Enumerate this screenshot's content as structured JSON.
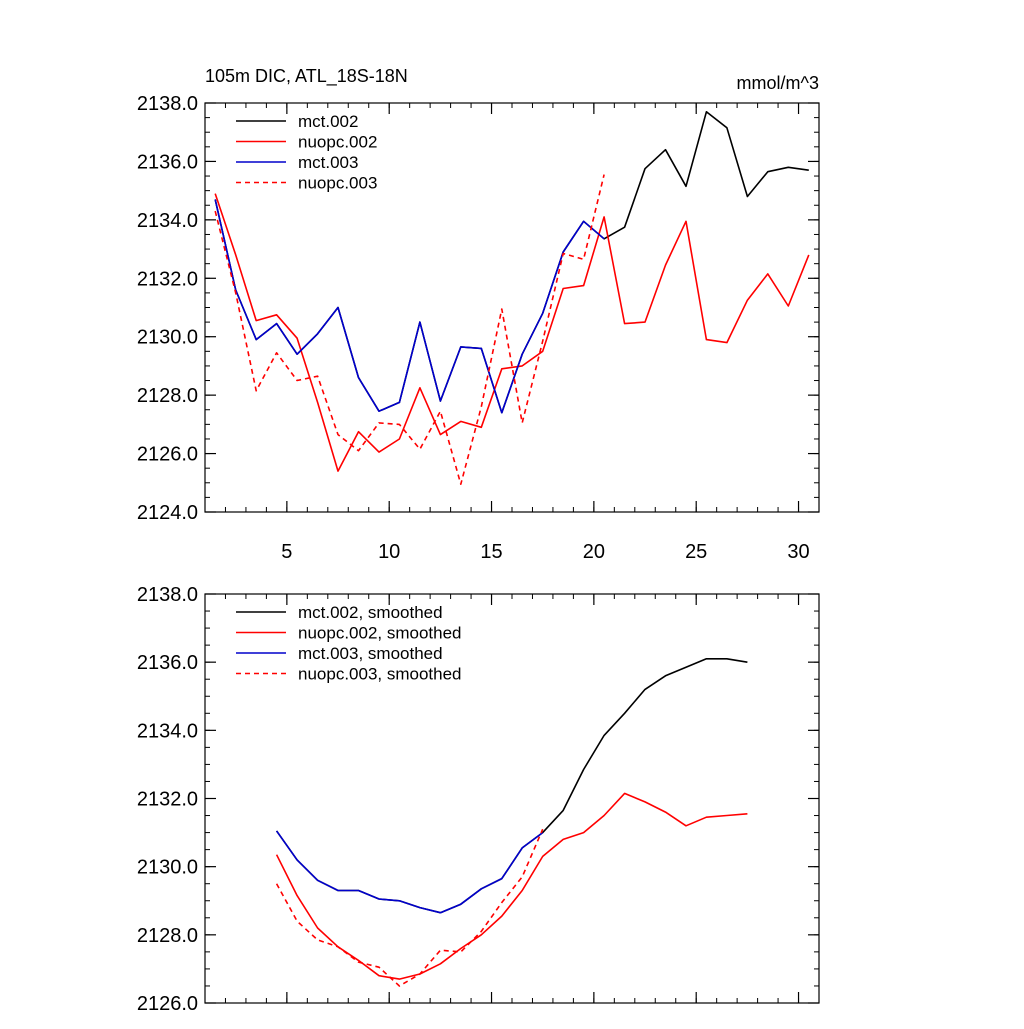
{
  "chart_data": [
    {
      "type": "line",
      "title": "105m DIC, ATL_18S-18N",
      "units": "mmol/m^3",
      "xlabel": "",
      "ylabel": "",
      "xlim": [
        1,
        31
      ],
      "ylim": [
        2124.0,
        2138.0
      ],
      "xticks": [
        5,
        10,
        15,
        20,
        25,
        30
      ],
      "yticks": [
        2124.0,
        2126.0,
        2128.0,
        2130.0,
        2132.0,
        2134.0,
        2136.0,
        2138.0
      ],
      "ytick_labels": [
        "2124.0",
        "2126.0",
        "2128.0",
        "2130.0",
        "2132.0",
        "2134.0",
        "2136.0",
        "2138.0"
      ],
      "legend_position": "top-left",
      "series": [
        {
          "name": "mct.002",
          "color": "#000000",
          "dash": "solid",
          "x": [
            1.5,
            2.5,
            3.5,
            4.5,
            5.5,
            6.5,
            7.5,
            8.5,
            9.5,
            10.5,
            11.5,
            12.5,
            13.5,
            14.5,
            15.5,
            16.5,
            17.5,
            18.5,
            19.5,
            20.5,
            21.5,
            22.5,
            23.5,
            24.5,
            25.5,
            26.5,
            27.5,
            28.5,
            29.5,
            30.5
          ],
          "values": [
            2134.7,
            2131.6,
            2129.9,
            2130.45,
            2129.4,
            2130.1,
            2131.0,
            2128.6,
            2127.45,
            2127.75,
            2130.5,
            2127.8,
            2129.65,
            2129.6,
            2127.4,
            2129.4,
            2130.8,
            2132.9,
            2133.95,
            2133.35,
            2133.75,
            2135.75,
            2136.4,
            2135.15,
            2137.7,
            2137.15,
            2134.8,
            2135.65,
            2135.8,
            2135.7
          ]
        },
        {
          "name": "nuopc.002",
          "color": "#ff0000",
          "dash": "solid",
          "x": [
            1.5,
            2.5,
            3.5,
            4.5,
            5.5,
            6.5,
            7.5,
            8.5,
            9.5,
            10.5,
            11.5,
            12.5,
            13.5,
            14.5,
            15.5,
            16.5,
            17.5,
            18.5,
            19.5,
            20.5,
            21.5,
            22.5,
            23.5,
            24.5,
            25.5,
            26.5,
            27.5,
            28.5,
            29.5,
            30.5
          ],
          "values": [
            2134.9,
            2132.8,
            2130.55,
            2130.75,
            2129.95,
            2127.75,
            2125.4,
            2126.75,
            2126.05,
            2126.5,
            2128.25,
            2126.65,
            2127.1,
            2126.9,
            2128.9,
            2129.0,
            2129.5,
            2131.65,
            2131.75,
            2134.1,
            2130.45,
            2130.5,
            2132.45,
            2133.95,
            2129.9,
            2129.8,
            2131.25,
            2132.15,
            2131.05,
            2132.8
          ]
        },
        {
          "name": "mct.003",
          "color": "#0000cc",
          "dash": "solid",
          "x": [
            1.5,
            2.5,
            3.5,
            4.5,
            5.5,
            6.5,
            7.5,
            8.5,
            9.5,
            10.5,
            11.5,
            12.5,
            13.5,
            14.5,
            15.5,
            16.5,
            17.5,
            18.5,
            19.5,
            20.5
          ],
          "values": [
            2134.7,
            2131.6,
            2129.9,
            2130.45,
            2129.4,
            2130.1,
            2131.0,
            2128.6,
            2127.45,
            2127.75,
            2130.5,
            2127.8,
            2129.65,
            2129.6,
            2127.4,
            2129.4,
            2130.8,
            2132.9,
            2133.95,
            2133.35
          ]
        },
        {
          "name": "nuopc.003",
          "color": "#ff0000",
          "dash": "dashed",
          "x": [
            1.5,
            2.5,
            3.5,
            4.5,
            5.5,
            6.5,
            7.5,
            8.5,
            9.5,
            10.5,
            11.5,
            12.5,
            13.5,
            14.5,
            15.5,
            16.5,
            17.5,
            18.5,
            19.5,
            20.5
          ],
          "values": [
            2134.3,
            2131.5,
            2128.15,
            2129.45,
            2128.5,
            2128.65,
            2126.65,
            2126.1,
            2127.05,
            2127.0,
            2126.15,
            2127.45,
            2124.95,
            2127.6,
            2130.95,
            2127.05,
            2129.85,
            2132.85,
            2132.65,
            2135.55
          ]
        }
      ]
    },
    {
      "type": "line",
      "title": "",
      "xlabel": "",
      "ylabel": "",
      "xlim": [
        1,
        31
      ],
      "ylim": [
        2126.0,
        2138.0
      ],
      "xticks": [
        5,
        10,
        15,
        20,
        25,
        30
      ],
      "yticks": [
        2126.0,
        2128.0,
        2130.0,
        2132.0,
        2134.0,
        2136.0,
        2138.0
      ],
      "ytick_labels": [
        "2126.0",
        "2128.0",
        "2130.0",
        "2132.0",
        "2134.0",
        "2136.0",
        "2138.0"
      ],
      "legend_position": "top-left",
      "series": [
        {
          "name": "mct.002, smoothed",
          "color": "#000000",
          "dash": "solid",
          "x": [
            4.5,
            5.5,
            6.5,
            7.5,
            8.5,
            9.5,
            10.5,
            11.5,
            12.5,
            13.5,
            14.5,
            15.5,
            16.5,
            17.5,
            18.5,
            19.5,
            20.5,
            21.5,
            22.5,
            23.5,
            24.5,
            25.5,
            26.5,
            27.5
          ],
          "values": [
            2131.05,
            2130.2,
            2129.6,
            2129.3,
            2129.3,
            2129.05,
            2129.0,
            2128.8,
            2128.65,
            2128.9,
            2129.35,
            2129.65,
            2130.55,
            2131.0,
            2131.65,
            2132.85,
            2133.85,
            2134.5,
            2135.2,
            2135.6,
            2135.85,
            2136.1,
            2136.1,
            2136.0
          ]
        },
        {
          "name": "nuopc.002, smoothed",
          "color": "#ff0000",
          "dash": "solid",
          "x": [
            4.5,
            5.5,
            6.5,
            7.5,
            8.5,
            9.5,
            10.5,
            11.5,
            12.5,
            13.5,
            14.5,
            15.5,
            16.5,
            17.5,
            18.5,
            19.5,
            20.5,
            21.5,
            22.5,
            23.5,
            24.5,
            25.5,
            26.5,
            27.5
          ],
          "values": [
            2130.35,
            2129.15,
            2128.2,
            2127.65,
            2127.25,
            2126.8,
            2126.7,
            2126.85,
            2127.15,
            2127.6,
            2128.0,
            2128.55,
            2129.3,
            2130.3,
            2130.8,
            2131.0,
            2131.5,
            2132.15,
            2131.9,
            2131.6,
            2131.2,
            2131.45,
            2131.5,
            2131.55
          ]
        },
        {
          "name": "mct.003, smoothed",
          "color": "#0000cc",
          "dash": "solid",
          "x": [
            4.5,
            5.5,
            6.5,
            7.5,
            8.5,
            9.5,
            10.5,
            11.5,
            12.5,
            13.5,
            14.5,
            15.5,
            16.5,
            17.5
          ],
          "values": [
            2131.05,
            2130.2,
            2129.6,
            2129.3,
            2129.3,
            2129.05,
            2129.0,
            2128.8,
            2128.65,
            2128.9,
            2129.35,
            2129.65,
            2130.55,
            2131.0
          ]
        },
        {
          "name": "nuopc.003, smoothed",
          "color": "#ff0000",
          "dash": "dashed",
          "x": [
            4.5,
            5.5,
            6.5,
            7.5,
            8.5,
            9.5,
            10.5,
            11.5,
            12.5,
            13.5,
            14.5,
            15.5,
            16.5,
            17.5
          ],
          "values": [
            2129.5,
            2128.4,
            2127.85,
            2127.65,
            2127.2,
            2127.05,
            2126.5,
            2126.85,
            2127.55,
            2127.5,
            2128.1,
            2128.95,
            2129.7,
            2131.1
          ]
        }
      ]
    }
  ]
}
